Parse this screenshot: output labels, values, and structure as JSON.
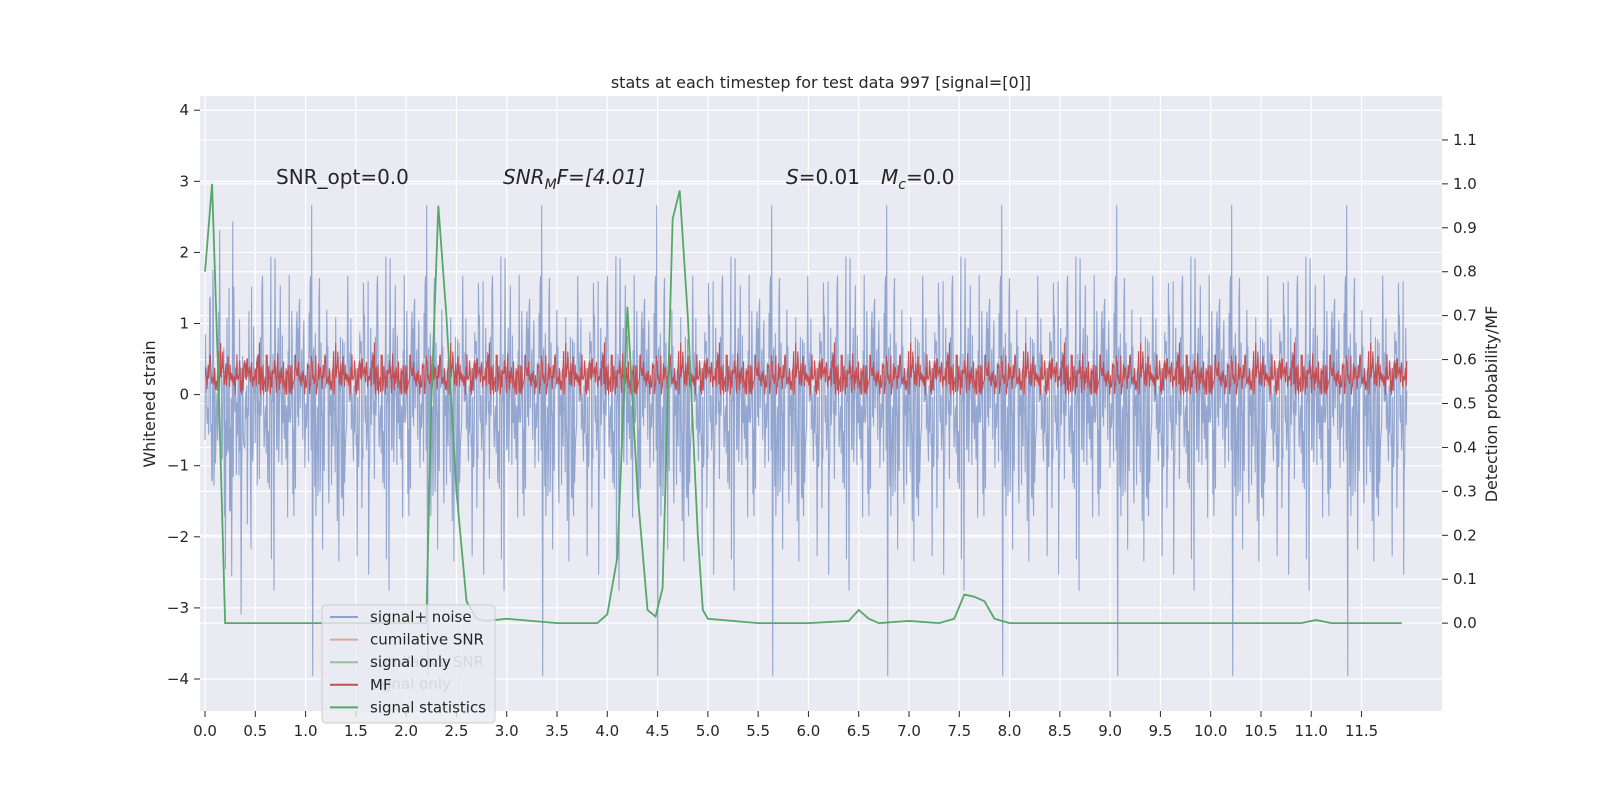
{
  "chart_data": {
    "type": "line",
    "title": "stats at each timestep for test data 997 [signal=[0]]",
    "xlabel": "",
    "ylabel_left": "Whitened strain",
    "ylabel_right": "Detection probability/MF",
    "xlim": [
      -0.05,
      12.3
    ],
    "ylim_left": [
      -4.45,
      4.2
    ],
    "ylim_right": [
      -0.2,
      1.2
    ],
    "x_ticks": [
      "0.0",
      "0.5",
      "1.0",
      "1.5",
      "2.0",
      "2.5",
      "3.0",
      "3.5",
      "4.0",
      "4.5",
      "5.0",
      "5.5",
      "6.0",
      "6.5",
      "7.0",
      "7.5",
      "8.0",
      "8.5",
      "9.0",
      "9.5",
      "10.0",
      "10.5",
      "11.0",
      "11.5"
    ],
    "y_ticks_left": [
      "4",
      "3",
      "2",
      "1",
      "0",
      "−1",
      "−2",
      "−3",
      "−4"
    ],
    "y_ticks_right": [
      "1.1",
      "1.0",
      "0.9",
      "0.8",
      "0.7",
      "0.6",
      "0.5",
      "0.4",
      "0.3",
      "0.2",
      "0.1",
      "0.0"
    ],
    "annotations": {
      "snr_opt": "SNR_opt=0.0",
      "snr_mf": "SNR",
      "snr_mf_sub": "M",
      "snr_mf_rest": "F=[4.01]",
      "s_label": "S",
      "s_value": "=0.01",
      "mc_label": "M",
      "mc_sub": "c",
      "mc_value": "=0.0"
    },
    "legend": [
      {
        "label": "signal+ noise",
        "color": "#8ea2cd"
      },
      {
        "label": "cumilative SNR",
        "color": "#e0a98d"
      },
      {
        "label": "signal only",
        "color": "#8ec69a"
      },
      {
        "label": "MF",
        "color": "#c44e52"
      },
      {
        "label": "signal statistics",
        "color": "#55a868"
      }
    ],
    "legend_ghost": [
      "cumilative SNR",
      "signal only"
    ],
    "series": [
      {
        "name": "signal+ noise",
        "axis": "left",
        "style": "noise",
        "x_range": [
          0,
          11.95
        ],
        "approx_envelope": [
          -4.1,
          3.85
        ],
        "typical_range": [
          -1.6,
          1.6
        ]
      },
      {
        "name": "MF",
        "axis": "left",
        "style": "noise",
        "x_range": [
          0,
          11.95
        ],
        "approx_envelope": [
          0.0,
          1.0
        ],
        "typical_range": [
          0.05,
          0.6
        ]
      },
      {
        "name": "signal statistics",
        "axis": "right",
        "x": [
          0.0,
          0.07,
          0.14,
          0.2,
          0.3,
          0.5,
          1.0,
          1.5,
          2.0,
          2.1,
          2.2,
          2.25,
          2.32,
          2.4,
          2.5,
          2.6,
          2.7,
          2.8,
          3.0,
          3.5,
          3.9,
          4.0,
          4.1,
          4.2,
          4.3,
          4.4,
          4.48,
          4.55,
          4.6,
          4.65,
          4.72,
          4.8,
          4.9,
          4.95,
          5.0,
          5.5,
          6.0,
          6.4,
          6.5,
          6.6,
          6.7,
          7.0,
          7.3,
          7.45,
          7.55,
          7.65,
          7.75,
          7.85,
          8.0,
          9.0,
          10.0,
          10.5,
          10.9,
          11.0,
          11.05,
          11.2,
          11.9
        ],
        "y": [
          0.8,
          1.0,
          0.5,
          0.0,
          0.0,
          0.0,
          0.0,
          0.0,
          0.0,
          0.0,
          0.0,
          0.5,
          0.95,
          0.7,
          0.3,
          0.05,
          0.01,
          0.005,
          0.01,
          0.0,
          0.0,
          0.02,
          0.15,
          0.72,
          0.3,
          0.03,
          0.015,
          0.08,
          0.5,
          0.92,
          0.985,
          0.7,
          0.2,
          0.03,
          0.01,
          0.0,
          0.0,
          0.005,
          0.03,
          0.01,
          0.0,
          0.005,
          0.0,
          0.01,
          0.065,
          0.06,
          0.05,
          0.01,
          0.0,
          0.0,
          0.0,
          0.0,
          0.0,
          0.005,
          0.007,
          0.0,
          0.0
        ]
      }
    ]
  }
}
